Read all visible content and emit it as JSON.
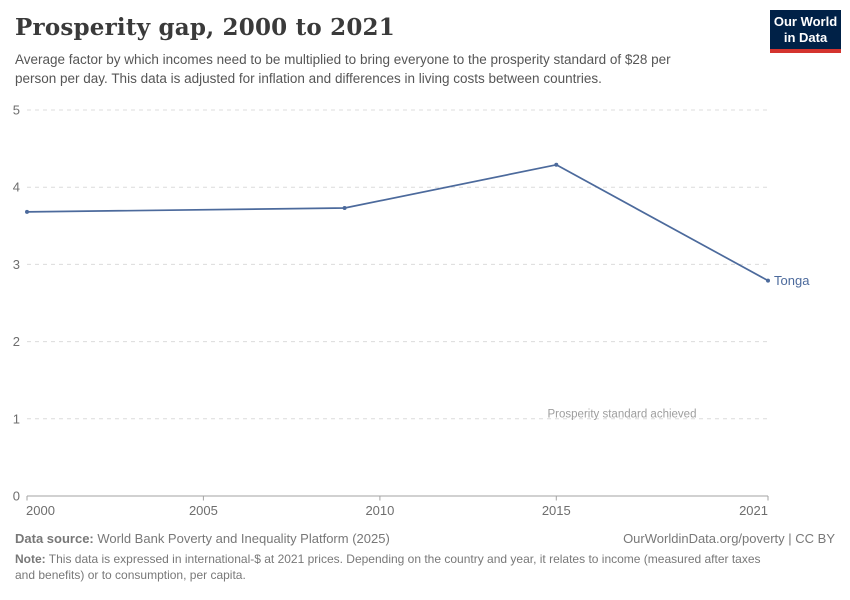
{
  "header": {
    "title": "Prosperity gap, 2000 to 2021",
    "subtitle_lines": [
      "Average factor by which incomes need to be multiplied to bring everyone to the prosperity standard of $28 per",
      "person per day. This data is adjusted for inflation and differences in living costs between countries."
    ]
  },
  "logo": {
    "line1": "Our World",
    "line2": "in Data",
    "bg_color": "#002147",
    "accent_color": "#d4342f"
  },
  "chart_data": {
    "type": "line",
    "title": "Prosperity gap, 2000 to 2021",
    "series": [
      {
        "name": "Tonga",
        "color": "#4C6A9C",
        "x": [
          2000,
          2009,
          2015,
          2021
        ],
        "values": [
          3.68,
          3.73,
          4.29,
          2.79
        ]
      }
    ],
    "x_ticks": [
      2000,
      2005,
      2010,
      2015,
      2021
    ],
    "y_ticks": [
      0,
      1,
      2,
      3,
      4,
      5
    ],
    "xlim": [
      2000,
      2021
    ],
    "ylim": [
      0,
      5
    ],
    "grid": "horizontal-dashed",
    "grid_color": "#dcdcdc",
    "axis_color": "#a3a3a3",
    "tick_label_color": "#6e6e6e",
    "annotation": {
      "text": "Prosperity standard achieved",
      "y": 1
    }
  },
  "footer": {
    "source_label": "Data source:",
    "source_text": " World Bank Poverty and Inequality Platform (2025)",
    "link_text": "OurWorldinData.org/poverty | CC BY",
    "note_label": "Note:",
    "note_line1": " This data is expressed in international-$ at 2021 prices. Depending on the country and year, it relates to income (measured after taxes",
    "note_line2": "and benefits) or to consumption, per capita."
  }
}
